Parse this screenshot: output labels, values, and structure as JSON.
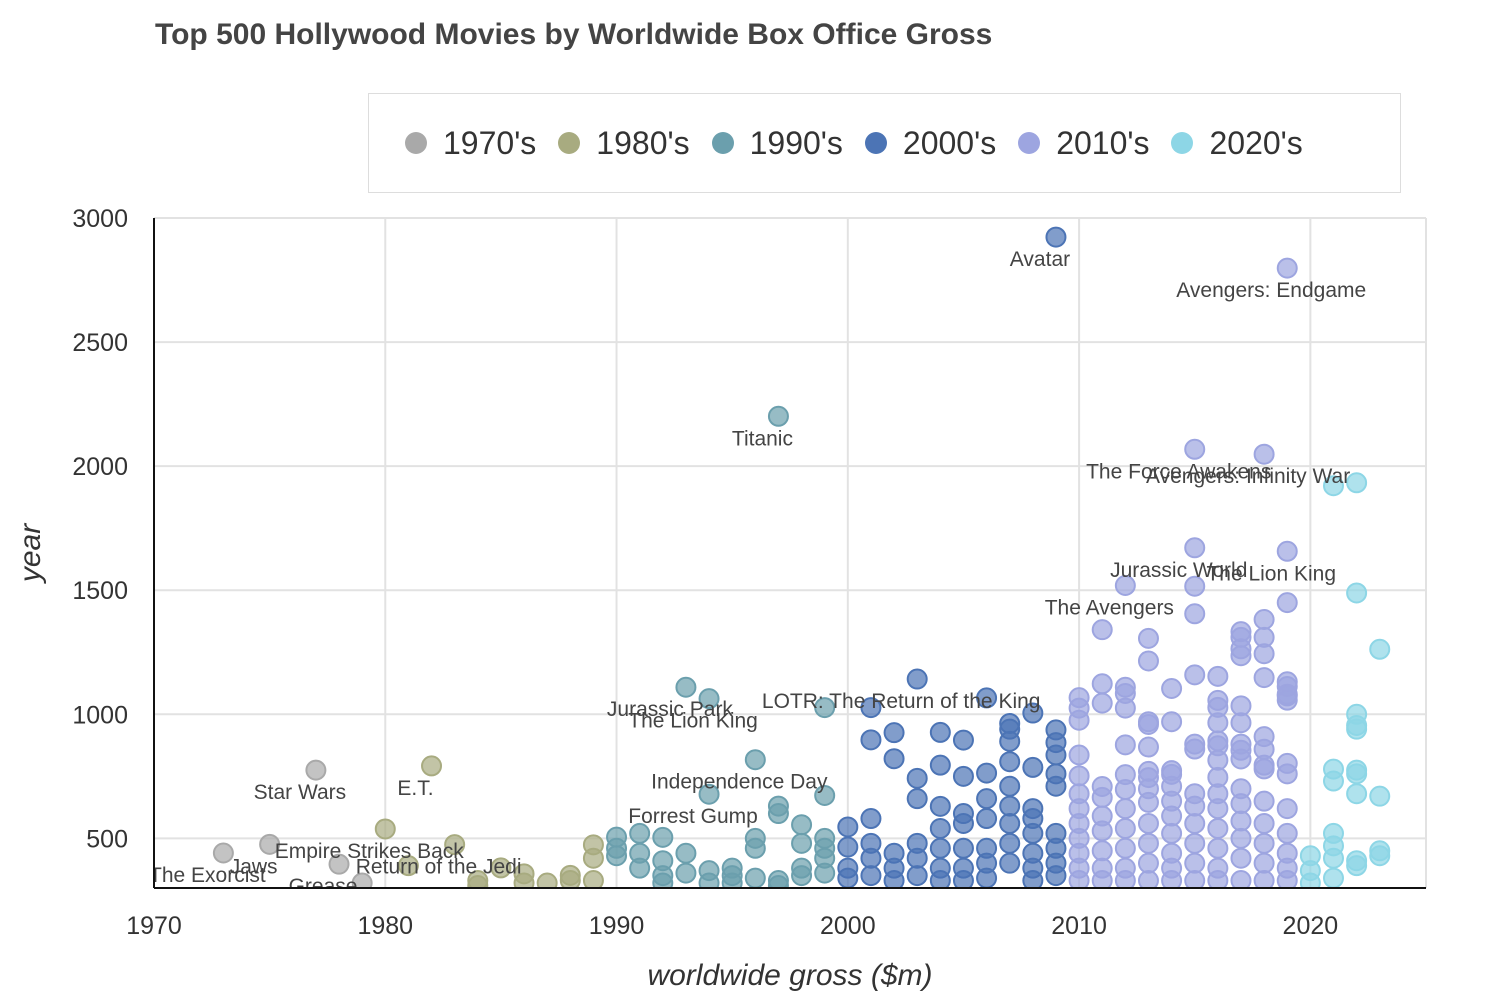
{
  "chart_data": {
    "type": "scatter",
    "title": "Top 500 Hollywood Movies by Worldwide Box Office Gross",
    "xlabel": "worldwide gross ($m)",
    "ylabel": "year",
    "xlim": [
      1970,
      2025
    ],
    "ylim": [
      300,
      3000
    ],
    "xticks": [
      1970,
      1980,
      1990,
      2000,
      2010,
      2020
    ],
    "yticks": [
      500,
      1000,
      1500,
      2000,
      2500,
      3000
    ],
    "grid": true,
    "legend_position": "top",
    "series": [
      {
        "name": "1970's",
        "color": "#a9a9a9",
        "points": [
          [
            1973,
            441
          ],
          [
            1975,
            476
          ],
          [
            1977,
            775
          ],
          [
            1978,
            396
          ],
          [
            1979,
            320
          ]
        ]
      },
      {
        "name": "1980's",
        "color": "#a8ab80",
        "points": [
          [
            1980,
            538
          ],
          [
            1981,
            390
          ],
          [
            1982,
            792
          ],
          [
            1983,
            475
          ],
          [
            1984,
            330
          ],
          [
            1985,
            381
          ],
          [
            1986,
            357
          ],
          [
            1987,
            320
          ],
          [
            1988,
            351
          ],
          [
            1989,
            474
          ],
          [
            1989,
            330
          ],
          [
            1984,
            310
          ],
          [
            1986,
            320
          ],
          [
            1988,
            330
          ],
          [
            1989,
            420
          ]
        ]
      },
      {
        "name": "1990's",
        "color": "#6b9fad",
        "points": [
          [
            1990,
            505
          ],
          [
            1990,
            460
          ],
          [
            1990,
            430
          ],
          [
            1991,
            520
          ],
          [
            1991,
            440
          ],
          [
            1991,
            380
          ],
          [
            1992,
            504
          ],
          [
            1992,
            410
          ],
          [
            1992,
            350
          ],
          [
            1993,
            1109
          ],
          [
            1993,
            440
          ],
          [
            1993,
            360
          ],
          [
            1994,
            1063
          ],
          [
            1994,
            678
          ],
          [
            1994,
            370
          ],
          [
            1995,
            380
          ],
          [
            1995,
            350
          ],
          [
            1996,
            817
          ],
          [
            1996,
            500
          ],
          [
            1996,
            460
          ],
          [
            1996,
            340
          ],
          [
            1997,
            2201
          ],
          [
            1997,
            600
          ],
          [
            1997,
            630
          ],
          [
            1997,
            330
          ],
          [
            1998,
            555
          ],
          [
            1998,
            480
          ],
          [
            1998,
            380
          ],
          [
            1998,
            350
          ],
          [
            1999,
            1027
          ],
          [
            1999,
            673
          ],
          [
            1999,
            500
          ],
          [
            1999,
            460
          ],
          [
            1999,
            420
          ],
          [
            1999,
            360
          ],
          [
            1992,
            320
          ],
          [
            1994,
            320
          ],
          [
            1995,
            320
          ],
          [
            1997,
            310
          ]
        ]
      },
      {
        "name": "2000's",
        "color": "#4c74b5",
        "points": [
          [
            2000,
            546
          ],
          [
            2000,
            465
          ],
          [
            2000,
            380
          ],
          [
            2000,
            340
          ],
          [
            2001,
            1027
          ],
          [
            2001,
            897
          ],
          [
            2001,
            580
          ],
          [
            2001,
            480
          ],
          [
            2001,
            420
          ],
          [
            2001,
            350
          ],
          [
            2002,
            926
          ],
          [
            2002,
            821
          ],
          [
            2002,
            440
          ],
          [
            2002,
            380
          ],
          [
            2003,
            1142
          ],
          [
            2003,
            742
          ],
          [
            2003,
            660
          ],
          [
            2003,
            480
          ],
          [
            2003,
            420
          ],
          [
            2004,
            927
          ],
          [
            2004,
            795
          ],
          [
            2004,
            629
          ],
          [
            2004,
            540
          ],
          [
            2004,
            460
          ],
          [
            2004,
            380
          ],
          [
            2005,
            896
          ],
          [
            2005,
            750
          ],
          [
            2005,
            600
          ],
          [
            2005,
            560
          ],
          [
            2005,
            460
          ],
          [
            2005,
            380
          ],
          [
            2006,
            1066
          ],
          [
            2006,
            763
          ],
          [
            2006,
            660
          ],
          [
            2006,
            580
          ],
          [
            2006,
            460
          ],
          [
            2006,
            400
          ],
          [
            2007,
            963
          ],
          [
            2007,
            940
          ],
          [
            2007,
            891
          ],
          [
            2007,
            809
          ],
          [
            2007,
            710
          ],
          [
            2007,
            630
          ],
          [
            2007,
            560
          ],
          [
            2007,
            480
          ],
          [
            2007,
            400
          ],
          [
            2008,
            1005
          ],
          [
            2008,
            786
          ],
          [
            2008,
            620
          ],
          [
            2008,
            580
          ],
          [
            2008,
            520
          ],
          [
            2008,
            440
          ],
          [
            2008,
            380
          ],
          [
            2009,
            2923
          ],
          [
            2009,
            937
          ],
          [
            2009,
            886
          ],
          [
            2009,
            836
          ],
          [
            2009,
            760
          ],
          [
            2009,
            710
          ],
          [
            2009,
            520
          ],
          [
            2009,
            460
          ],
          [
            2009,
            400
          ],
          [
            2009,
            350
          ],
          [
            2003,
            350
          ],
          [
            2005,
            330
          ],
          [
            2006,
            340
          ],
          [
            2008,
            330
          ],
          [
            2004,
            330
          ],
          [
            2002,
            330
          ]
        ]
      },
      {
        "name": "2010's",
        "color": "#9da5e0",
        "points": [
          [
            2010,
            1067
          ],
          [
            2010,
            1025
          ],
          [
            2010,
            976
          ],
          [
            2010,
            836
          ],
          [
            2010,
            752
          ],
          [
            2010,
            680
          ],
          [
            2010,
            620
          ],
          [
            2010,
            560
          ],
          [
            2010,
            500
          ],
          [
            2010,
            440
          ],
          [
            2010,
            380
          ],
          [
            2011,
            1341
          ],
          [
            2011,
            1123
          ],
          [
            2011,
            1045
          ],
          [
            2011,
            709
          ],
          [
            2011,
            665
          ],
          [
            2011,
            590
          ],
          [
            2011,
            530
          ],
          [
            2011,
            450
          ],
          [
            2011,
            380
          ],
          [
            2012,
            1519
          ],
          [
            2012,
            1109
          ],
          [
            2012,
            1084
          ],
          [
            2012,
            1025
          ],
          [
            2012,
            877
          ],
          [
            2012,
            757
          ],
          [
            2012,
            697
          ],
          [
            2012,
            620
          ],
          [
            2012,
            540
          ],
          [
            2012,
            460
          ],
          [
            2012,
            380
          ],
          [
            2013,
            1306
          ],
          [
            2013,
            1215
          ],
          [
            2013,
            970
          ],
          [
            2013,
            959
          ],
          [
            2013,
            868
          ],
          [
            2013,
            770
          ],
          [
            2013,
            745
          ],
          [
            2013,
            700
          ],
          [
            2013,
            645
          ],
          [
            2013,
            560
          ],
          [
            2013,
            480
          ],
          [
            2013,
            400
          ],
          [
            2014,
            1104
          ],
          [
            2014,
            970
          ],
          [
            2014,
            773
          ],
          [
            2014,
            758
          ],
          [
            2014,
            710
          ],
          [
            2014,
            650
          ],
          [
            2014,
            590
          ],
          [
            2014,
            520
          ],
          [
            2014,
            440
          ],
          [
            2014,
            380
          ],
          [
            2015,
            2068
          ],
          [
            2015,
            1671
          ],
          [
            2015,
            1516
          ],
          [
            2015,
            1405
          ],
          [
            2015,
            1159
          ],
          [
            2015,
            880
          ],
          [
            2015,
            860
          ],
          [
            2015,
            680
          ],
          [
            2015,
            630
          ],
          [
            2015,
            560
          ],
          [
            2015,
            480
          ],
          [
            2015,
            400
          ],
          [
            2016,
            1153
          ],
          [
            2016,
            1056
          ],
          [
            2016,
            1028
          ],
          [
            2016,
            966
          ],
          [
            2016,
            893
          ],
          [
            2016,
            873
          ],
          [
            2016,
            815
          ],
          [
            2016,
            746
          ],
          [
            2016,
            680
          ],
          [
            2016,
            620
          ],
          [
            2016,
            540
          ],
          [
            2016,
            460
          ],
          [
            2016,
            380
          ],
          [
            2017,
            1333
          ],
          [
            2017,
            1310
          ],
          [
            2017,
            1264
          ],
          [
            2017,
            1236
          ],
          [
            2017,
            1034
          ],
          [
            2017,
            966
          ],
          [
            2017,
            880
          ],
          [
            2017,
            855
          ],
          [
            2017,
            820
          ],
          [
            2017,
            700
          ],
          [
            2017,
            640
          ],
          [
            2017,
            570
          ],
          [
            2017,
            500
          ],
          [
            2017,
            420
          ],
          [
            2018,
            2048
          ],
          [
            2018,
            1382
          ],
          [
            2018,
            1310
          ],
          [
            2018,
            1244
          ],
          [
            2018,
            1148
          ],
          [
            2018,
            910
          ],
          [
            2018,
            859
          ],
          [
            2018,
            795
          ],
          [
            2018,
            780
          ],
          [
            2018,
            650
          ],
          [
            2018,
            560
          ],
          [
            2018,
            480
          ],
          [
            2018,
            400
          ],
          [
            2019,
            2798
          ],
          [
            2019,
            1657
          ],
          [
            2019,
            1450
          ],
          [
            2019,
            1131
          ],
          [
            2019,
            1112
          ],
          [
            2019,
            1081
          ],
          [
            2019,
            1074
          ],
          [
            2019,
            1057
          ],
          [
            2019,
            802
          ],
          [
            2019,
            760
          ],
          [
            2019,
            620
          ],
          [
            2019,
            520
          ],
          [
            2019,
            440
          ],
          [
            2019,
            380
          ],
          [
            2010,
            330
          ],
          [
            2011,
            330
          ],
          [
            2012,
            330
          ],
          [
            2013,
            330
          ],
          [
            2014,
            330
          ],
          [
            2015,
            330
          ],
          [
            2016,
            330
          ],
          [
            2017,
            330
          ],
          [
            2018,
            330
          ],
          [
            2019,
            330
          ]
        ]
      },
      {
        "name": "2020's",
        "color": "#8dd6e6",
        "points": [
          [
            2020,
            430
          ],
          [
            2020,
            370
          ],
          [
            2020,
            320
          ],
          [
            2021,
            1921
          ],
          [
            2021,
            779
          ],
          [
            2021,
            731
          ],
          [
            2021,
            520
          ],
          [
            2021,
            470
          ],
          [
            2021,
            420
          ],
          [
            2021,
            340
          ],
          [
            2022,
            1933
          ],
          [
            2022,
            1489
          ],
          [
            2022,
            1000
          ],
          [
            2022,
            955
          ],
          [
            2022,
            940
          ],
          [
            2022,
            775
          ],
          [
            2022,
            760
          ],
          [
            2022,
            680
          ],
          [
            2022,
            410
          ],
          [
            2022,
            390
          ],
          [
            2023,
            1262
          ],
          [
            2023,
            670
          ],
          [
            2023,
            450
          ],
          [
            2023,
            430
          ]
        ]
      }
    ],
    "annotations": [
      {
        "text": "Avatar",
        "x": 2009,
        "y": 2923
      },
      {
        "text": "Avengers: Endgame",
        "x": 2019,
        "y": 2798
      },
      {
        "text": "Titanic",
        "x": 1997,
        "y": 2201
      },
      {
        "text": "The Force Awakens",
        "x": 2015,
        "y": 2068
      },
      {
        "text": "Avengers: Infinity War",
        "x": 2018,
        "y": 2048
      },
      {
        "text": "Jurassic World",
        "x": 2015,
        "y": 1671
      },
      {
        "text": "The Lion King",
        "x": 2019,
        "y": 1657
      },
      {
        "text": "The Avengers",
        "x": 2012,
        "y": 1519
      },
      {
        "text": "LOTR: The Return of the King",
        "x": 2003,
        "y": 1142
      },
      {
        "text": "Jurassic Park",
        "x": 1993,
        "y": 1109
      },
      {
        "text": "The Lion King",
        "x": 1994,
        "y": 1063
      },
      {
        "text": "Independence Day",
        "x": 1996,
        "y": 817
      },
      {
        "text": "Forrest Gump",
        "x": 1994,
        "y": 678
      },
      {
        "text": "Star Wars",
        "x": 1977,
        "y": 775
      },
      {
        "text": "E.T.",
        "x": 1982,
        "y": 792
      },
      {
        "text": "Empire Strikes Back",
        "x": 1980,
        "y": 538
      },
      {
        "text": "Return of the Jedi",
        "x": 1983,
        "y": 475
      },
      {
        "text": "Jaws",
        "x": 1975,
        "y": 476
      },
      {
        "text": "The Exorcist",
        "x": 1973,
        "y": 441
      },
      {
        "text": "Grease",
        "x": 1978,
        "y": 396
      }
    ]
  }
}
